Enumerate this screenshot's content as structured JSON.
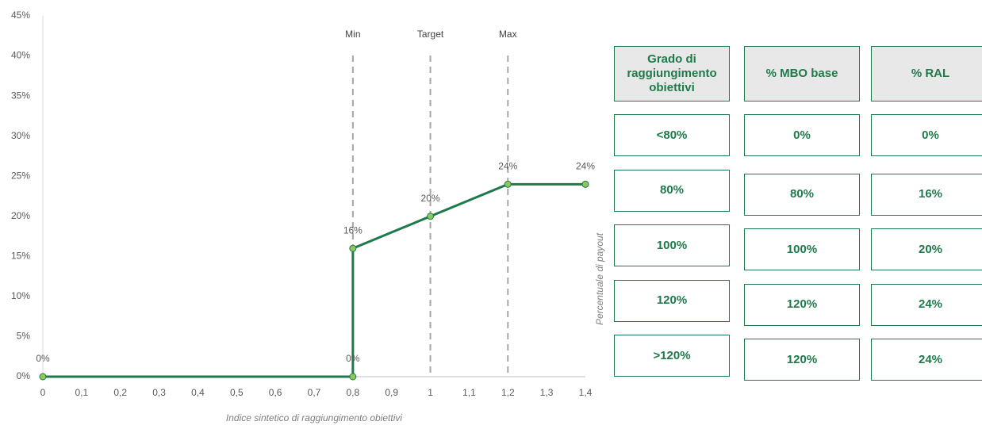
{
  "chart_data": {
    "type": "line",
    "x": [
      0,
      0.8,
      0.8,
      1,
      1.2,
      1.4
    ],
    "values": [
      0,
      0,
      16,
      20,
      24,
      24
    ],
    "value_labels": [
      "0%",
      "0%",
      "16%",
      "20%",
      "24%",
      "24%"
    ],
    "color": "#1e7a4a",
    "marker_color": "#8dc85a",
    "x_label": "Indice sintetico di raggiungimento obiettivi",
    "y_label": "Percentuale di payout",
    "xlim": [
      0,
      1.4
    ],
    "xticks": [
      0,
      {
        "value": 0.1,
        "label": "0,1"
      },
      {
        "value": 0.2,
        "label": "0,2"
      },
      {
        "value": 0.3,
        "label": "0,3"
      },
      {
        "value": 0.4,
        "label": "0,4"
      },
      {
        "value": 0.5,
        "label": "0,5"
      },
      {
        "value": 0.6,
        "label": "0,6"
      },
      {
        "value": 0.7,
        "label": "0,7"
      },
      {
        "value": 0.8,
        "label": "0,8"
      },
      {
        "value": 0.9,
        "label": "0,9"
      },
      1,
      {
        "value": 1.1,
        "label": "1,1"
      },
      {
        "value": 1.2,
        "label": "1,2"
      },
      {
        "value": 1.3,
        "label": "1,3"
      },
      {
        "value": 1.4,
        "label": "1,4"
      }
    ],
    "ylim": [
      0,
      45
    ],
    "yticks": [
      {
        "value": 0,
        "label": "0%"
      },
      {
        "value": 5,
        "label": "5%"
      },
      {
        "value": 10,
        "label": "10%"
      },
      {
        "value": 15,
        "label": "15%"
      },
      {
        "value": 20,
        "label": "20%"
      },
      {
        "value": 25,
        "label": "25%"
      },
      {
        "value": 30,
        "label": "30%"
      },
      {
        "value": 35,
        "label": "35%"
      },
      {
        "value": 40,
        "label": "40%"
      },
      {
        "value": 45,
        "label": "45%"
      }
    ],
    "annotations": [
      {
        "label": "Min",
        "x": 0.8
      },
      {
        "label": "Target",
        "x": 1
      },
      {
        "label": "Max",
        "x": 1.2
      }
    ]
  },
  "table": {
    "header": [
      "Grado di raggiungimento obiettivi",
      "% MBO base",
      "% RAL"
    ],
    "rows": [
      [
        "<80%",
        "0%",
        "0%"
      ],
      [
        "80%",
        "80%",
        "16%"
      ],
      [
        "100%",
        "100%",
        "20%"
      ],
      [
        "120%",
        "120%",
        "24%"
      ],
      [
        ">120%",
        "120%",
        "24%"
      ]
    ]
  }
}
